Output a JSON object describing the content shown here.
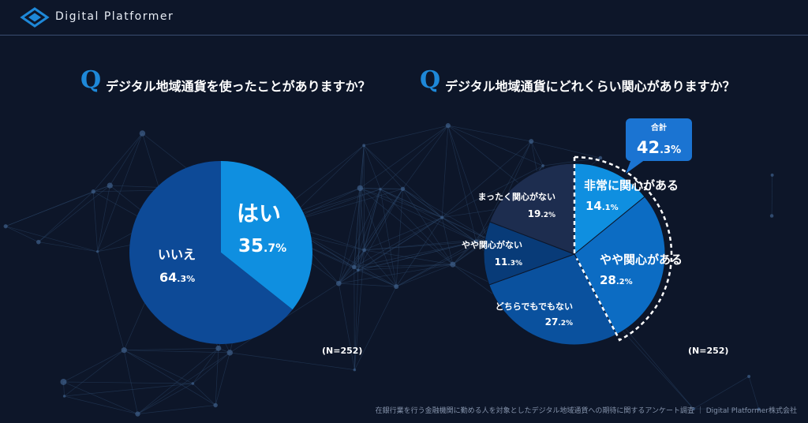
{
  "header": {
    "brand": "Digital Platformer"
  },
  "colors": {
    "background": "#0d1629",
    "accent": "#1e88d8",
    "yes_slice": "#0f8fe0",
    "no_slice": "#0d4a97",
    "callout": "#1b74d2"
  },
  "questions": [
    {
      "mark": "Q",
      "text": "デジタル地域通貨を使ったことがありますか？"
    },
    {
      "mark": "Q",
      "text": "デジタル地域通貨にどれくらい関心がありますか？"
    }
  ],
  "chart_data": [
    {
      "type": "pie",
      "title": "デジタル地域通貨を使ったことがありますか？",
      "unit": "%",
      "slices": [
        {
          "label": "はい",
          "value": 35.7,
          "color": "#0f8fe0"
        },
        {
          "label": "いいえ",
          "value": 64.3,
          "color": "#0d4a97"
        }
      ],
      "n_label": "(N=252)"
    },
    {
      "type": "pie",
      "title": "デジタル地域通貨にどれくらい関心がありますか？",
      "unit": "%",
      "slices": [
        {
          "label": "非常に関心がある",
          "value": 14.1,
          "color": "#0f8fe0"
        },
        {
          "label": "やや関心がある",
          "value": 28.2,
          "color": "#0c6cc3"
        },
        {
          "label": "どちらでもでもない",
          "value": 27.2,
          "color": "#0a519e"
        },
        {
          "label": "やや関心がない",
          "value": 11.3,
          "color": "#083b78"
        },
        {
          "label": "まったく関心がない",
          "value": 19.2,
          "color": "#1d2d4f"
        }
      ],
      "annotation": {
        "label": "合計",
        "value": 42.3
      },
      "n_label": "(N=252)"
    }
  ],
  "footer": {
    "text": "在銀行業を行う金融機関に勤める人を対象としたデジタル地域通貨への期待に関するアンケート調査 ｜ Digital Platformer株式会社"
  }
}
